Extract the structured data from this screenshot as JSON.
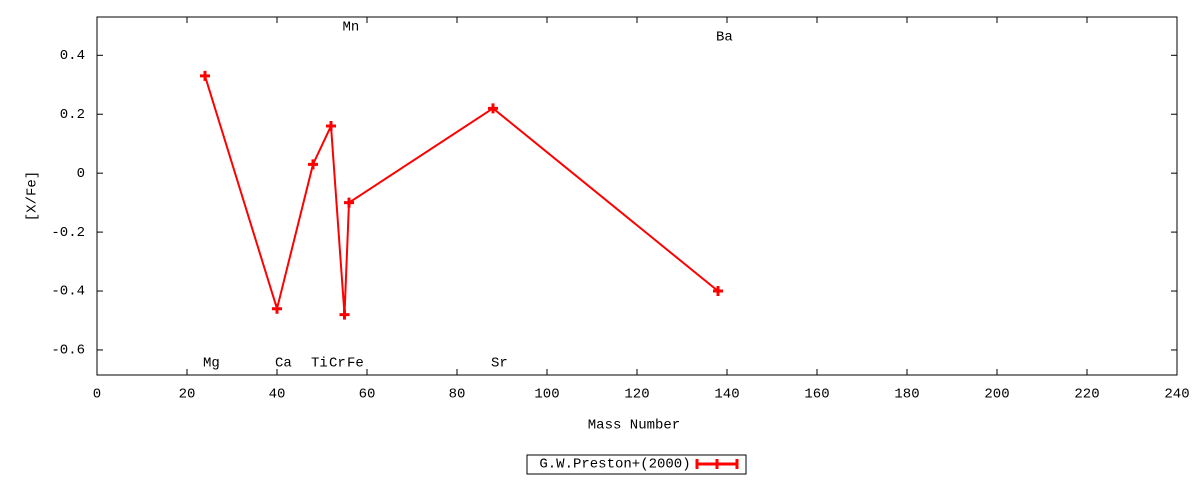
{
  "chart_data": {
    "type": "line",
    "xlabel": "Mass Number",
    "ylabel": "[X/Fe]",
    "x": [
      24,
      40,
      48,
      52,
      55,
      56,
      88,
      138
    ],
    "labels": [
      "Mg",
      "Ca",
      "Ti",
      "Cr",
      "Mn",
      "Fe",
      "Sr",
      "Ba"
    ],
    "series": [
      {
        "name": "G.W.Preston+(2000)",
        "color": "#ff0000",
        "values": [
          0.33,
          -0.46,
          0.03,
          0.16,
          -0.48,
          -0.1,
          0.22,
          -0.4
        ]
      }
    ],
    "xlim": [
      0,
      240
    ],
    "xticks": [
      0,
      20,
      40,
      60,
      80,
      100,
      120,
      140,
      160,
      180,
      200,
      220,
      240
    ],
    "ylim": [
      -0.685,
      0.53
    ],
    "yticks": [
      -0.6,
      -0.4,
      -0.2,
      0,
      0.2,
      0.4
    ],
    "grid": false,
    "legend": "bottom"
  }
}
